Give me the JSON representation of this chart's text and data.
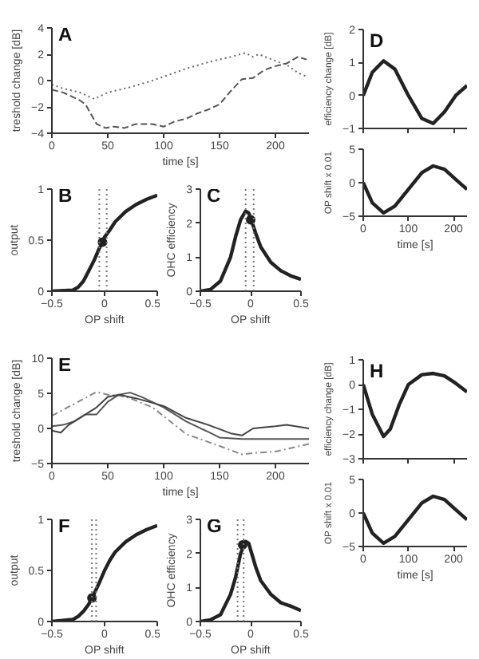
{
  "chart_data": [
    {
      "type": "line",
      "annotations": [
        "A"
      ],
      "xlabel": "time [s]",
      "ylabel": "treshold change [dB]",
      "xlim": [
        0,
        230
      ],
      "xticks": [
        0,
        50,
        100,
        150,
        200
      ],
      "ylim": [
        -4,
        4
      ],
      "yticks": [
        -4,
        -2,
        0,
        2,
        4
      ],
      "series": [
        {
          "color": "#666666",
          "line_style": "dotted",
          "x": [
            0,
            10,
            25,
            38,
            50,
            70,
            90,
            100,
            120,
            140,
            160,
            173,
            180,
            185,
            200,
            210,
            220,
            228
          ],
          "values": [
            -0.3,
            -0.6,
            -0.9,
            -1.4,
            -0.9,
            -0.5,
            0,
            0.3,
            0.9,
            1.4,
            1.8,
            2.1,
            1.8,
            2.0,
            1.5,
            1.2,
            0.6,
            0.3
          ]
        },
        {
          "color": "#555555",
          "line_style": "dashed",
          "x": [
            0,
            10,
            25,
            30,
            40,
            48,
            55,
            65,
            75,
            90,
            100,
            110,
            120,
            130,
            140,
            150,
            160,
            170,
            180,
            190,
            200,
            210,
            220,
            228
          ],
          "values": [
            -0.7,
            -0.9,
            -1.5,
            -1.8,
            -3.3,
            -3.6,
            -3.5,
            -3.6,
            -3.3,
            -3.3,
            -3.5,
            -3.1,
            -2.9,
            -2.5,
            -2.2,
            -1.8,
            -0.8,
            0.1,
            0.2,
            0.8,
            1.1,
            1.3,
            1.8,
            1.6
          ]
        }
      ]
    },
    {
      "type": "line",
      "annotations": [
        "B"
      ],
      "xlabel": "OP shift",
      "ylabel": "output",
      "xlim": [
        -0.5,
        0.5
      ],
      "xticks": [
        -0.5,
        0,
        0.5
      ],
      "ylim": [
        0,
        1
      ],
      "yticks": [
        0,
        0.5,
        1
      ],
      "ref_lines": [
        {
          "axis": "x",
          "value": -0.05,
          "line_style": "dotted",
          "color": "#777777"
        },
        {
          "axis": "x",
          "value": 0.02,
          "line_style": "dotted",
          "color": "#777777"
        }
      ],
      "series": [
        {
          "color": "#222222",
          "x": [
            -0.5,
            -0.3,
            -0.25,
            -0.2,
            -0.15,
            -0.1,
            -0.05,
            -0.02,
            0,
            0.05,
            0.1,
            0.2,
            0.3,
            0.4,
            0.5
          ],
          "values": [
            0,
            0.01,
            0.04,
            0.1,
            0.2,
            0.3,
            0.42,
            0.48,
            0.53,
            0.6,
            0.68,
            0.78,
            0.85,
            0.9,
            0.94
          ]
        },
        {
          "type": "scatter",
          "marker": "circle",
          "color": "#222222",
          "x": [
            -0.02
          ],
          "values": [
            0.48
          ]
        }
      ]
    },
    {
      "type": "line",
      "annotations": [
        "C"
      ],
      "xlabel": "OP shift",
      "ylabel": "OHC efficiency",
      "xlim": [
        -0.5,
        0.5
      ],
      "xticks": [
        -0.5,
        0,
        0.5
      ],
      "ylim": [
        0,
        3
      ],
      "yticks": [
        0,
        1,
        2,
        3
      ],
      "ref_lines": [
        {
          "axis": "x",
          "value": -0.05,
          "line_style": "dotted",
          "color": "#777777"
        },
        {
          "axis": "x",
          "value": 0.03,
          "line_style": "dotted",
          "color": "#777777"
        }
      ],
      "series": [
        {
          "color": "#222222",
          "x": [
            -0.5,
            -0.4,
            -0.3,
            -0.2,
            -0.15,
            -0.1,
            -0.05,
            -0.02,
            0,
            0.05,
            0.1,
            0.2,
            0.3,
            0.4,
            0.5
          ],
          "values": [
            0,
            0.05,
            0.3,
            1.0,
            1.6,
            2.1,
            2.35,
            2.3,
            2.15,
            1.7,
            1.3,
            0.85,
            0.6,
            0.45,
            0.35
          ]
        },
        {
          "type": "scatter",
          "marker": "circle",
          "color": "#222222",
          "x": [
            0
          ],
          "values": [
            2.1
          ]
        }
      ]
    },
    {
      "type": "line",
      "annotations": [
        "D"
      ],
      "ylabel": "efficiency change [dB]",
      "xlim": [
        0,
        230
      ],
      "xticks": [
        0,
        100,
        200
      ],
      "ylim": [
        -1,
        2
      ],
      "yticks": [
        -1,
        0,
        1,
        2
      ],
      "tick_labels": "y",
      "series": [
        {
          "color": "#222222",
          "x": [
            0,
            20,
            45,
            70,
            100,
            130,
            155,
            180,
            205,
            230
          ],
          "values": [
            0,
            0.7,
            1.05,
            0.8,
            0,
            -0.7,
            -0.85,
            -0.5,
            0,
            0.3
          ]
        }
      ]
    },
    {
      "type": "line",
      "xlabel": "time [s]",
      "ylabel": "OP shift x 0.01",
      "xlim": [
        0,
        230
      ],
      "xticks": [
        0,
        100,
        200
      ],
      "ylim": [
        -5,
        5
      ],
      "yticks": [
        -5,
        0,
        5
      ],
      "series": [
        {
          "color": "#222222",
          "x": [
            0,
            20,
            45,
            70,
            100,
            130,
            155,
            180,
            205,
            230
          ],
          "values": [
            0,
            -3,
            -4.5,
            -3.5,
            -1,
            1.5,
            2.5,
            2,
            0.5,
            -1
          ]
        }
      ]
    },
    {
      "type": "line",
      "annotations": [
        "E"
      ],
      "xlabel": "time [s]",
      "ylabel": "treshold change [dB]",
      "xlim": [
        0,
        230
      ],
      "xticks": [
        0,
        50,
        100,
        150,
        200
      ],
      "ylim": [
        -5,
        10
      ],
      "yticks": [
        -5,
        0,
        5,
        10
      ],
      "series": [
        {
          "color": "#888888",
          "line_style": "dashdot",
          "x": [
            0,
            20,
            40,
            50,
            60,
            70,
            90,
            110,
            120,
            150,
            170,
            180,
            200,
            230
          ],
          "values": [
            1.8,
            3.5,
            5.2,
            4.8,
            4.7,
            4.3,
            3.0,
            0.5,
            -0.8,
            -2.5,
            -3.7,
            -3.5,
            -3.3,
            -2.2
          ]
        },
        {
          "color": "#555555",
          "line_style": "solid",
          "x": [
            0,
            10,
            20,
            30,
            40,
            50,
            60,
            70,
            80,
            100,
            120,
            140,
            150,
            170,
            230
          ],
          "values": [
            0.3,
            0.5,
            1.0,
            2.0,
            2.0,
            3.8,
            4.8,
            5.1,
            4.5,
            3.0,
            1.0,
            -0.5,
            -1.3,
            -1.5,
            -1.5
          ]
        },
        {
          "color": "#444444",
          "line_style": "solid",
          "x": [
            0,
            8,
            15,
            25,
            40,
            50,
            60,
            75,
            100,
            120,
            140,
            160,
            170,
            180,
            200,
            210,
            230
          ],
          "values": [
            -0.3,
            -0.6,
            0.5,
            1.5,
            3.0,
            4.5,
            4.8,
            4.3,
            3.2,
            1.5,
            0.5,
            -0.7,
            -1.0,
            0,
            0.3,
            0.5,
            0
          ]
        }
      ]
    },
    {
      "type": "line",
      "annotations": [
        "F"
      ],
      "xlabel": "OP shift",
      "ylabel": "output",
      "xlim": [
        -0.5,
        0.5
      ],
      "xticks": [
        -0.5,
        0,
        0.5
      ],
      "ylim": [
        0,
        1
      ],
      "yticks": [
        0,
        0.5,
        1
      ],
      "ref_lines": [
        {
          "axis": "x",
          "value": -0.12,
          "line_style": "dotted",
          "color": "#777777"
        },
        {
          "axis": "x",
          "value": -0.08,
          "line_style": "dotted",
          "color": "#777777"
        }
      ],
      "series": [
        {
          "color": "#222222",
          "x": [
            -0.5,
            -0.3,
            -0.25,
            -0.2,
            -0.15,
            -0.1,
            -0.05,
            0,
            0.05,
            0.1,
            0.2,
            0.3,
            0.4,
            0.5
          ],
          "values": [
            0,
            0.02,
            0.05,
            0.1,
            0.17,
            0.27,
            0.38,
            0.5,
            0.6,
            0.68,
            0.78,
            0.85,
            0.9,
            0.94
          ]
        },
        {
          "type": "scatter",
          "marker": "circle",
          "color": "#222222",
          "x": [
            -0.12
          ],
          "values": [
            0.23
          ]
        }
      ]
    },
    {
      "type": "line",
      "annotations": [
        "G"
      ],
      "xlabel": "OP shift",
      "ylabel": "OHC efficiency",
      "xlim": [
        -0.5,
        0.5
      ],
      "xticks": [
        -0.5,
        0,
        0.5
      ],
      "ylim": [
        0,
        3
      ],
      "yticks": [
        0,
        1,
        2,
        3
      ],
      "ref_lines": [
        {
          "axis": "x",
          "value": -0.13,
          "line_style": "dotted",
          "color": "#777777"
        },
        {
          "axis": "x",
          "value": -0.07,
          "line_style": "dotted",
          "color": "#777777"
        }
      ],
      "series": [
        {
          "color": "#222222",
          "x": [
            -0.5,
            -0.4,
            -0.3,
            -0.2,
            -0.15,
            -0.1,
            -0.05,
            -0.02,
            0,
            0.05,
            0.1,
            0.2,
            0.3,
            0.4,
            0.5
          ],
          "values": [
            0,
            0.05,
            0.2,
            0.8,
            1.3,
            2.0,
            2.35,
            2.3,
            2.1,
            1.6,
            1.2,
            0.8,
            0.55,
            0.45,
            0.32
          ]
        },
        {
          "type": "scatter",
          "marker": "circle",
          "color": "#222222",
          "x": [
            -0.08
          ],
          "values": [
            2.25
          ]
        }
      ]
    },
    {
      "type": "line",
      "annotations": [
        "H"
      ],
      "ylabel": "efficiency change [dB]",
      "xlim": [
        0,
        230
      ],
      "xticks": [
        0,
        100,
        200
      ],
      "ylim": [
        -3,
        1
      ],
      "yticks": [
        -3,
        -2,
        -1,
        0,
        1
      ],
      "tick_labels": "y",
      "series": [
        {
          "color": "#222222",
          "x": [
            0,
            20,
            45,
            60,
            80,
            100,
            130,
            155,
            180,
            205,
            230
          ],
          "values": [
            0,
            -1.2,
            -2.1,
            -1.8,
            -0.8,
            0,
            0.4,
            0.45,
            0.35,
            0.05,
            -0.3
          ]
        }
      ]
    },
    {
      "type": "line",
      "xlabel": "time [s]",
      "ylabel": "OP shift x 0.01",
      "xlim": [
        0,
        230
      ],
      "xticks": [
        0,
        100,
        200
      ],
      "ylim": [
        -5,
        5
      ],
      "yticks": [
        -5,
        0,
        5
      ],
      "series": [
        {
          "color": "#222222",
          "x": [
            0,
            20,
            45,
            70,
            100,
            130,
            155,
            180,
            205,
            230
          ],
          "values": [
            0,
            -3,
            -4.5,
            -3.5,
            -1,
            1.5,
            2.5,
            2,
            0.5,
            -1
          ]
        }
      ]
    }
  ]
}
